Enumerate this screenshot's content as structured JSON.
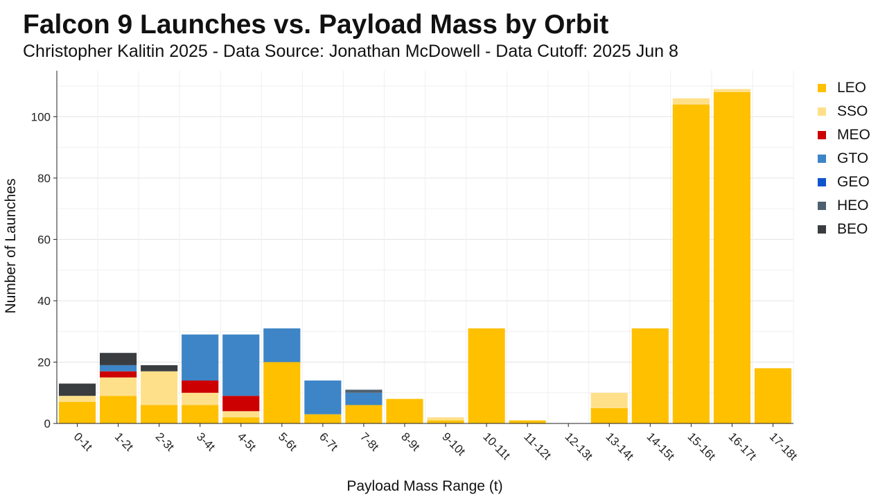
{
  "title": "Falcon 9 Launches vs. Payload Mass by Orbit",
  "subtitle": "Christopher Kalitin 2025 - Data Source: Jonathan McDowell - Data Cutoff: 2025 Jun 8",
  "chart_data": {
    "type": "bar",
    "stacked": true,
    "title": "Falcon 9 Launches vs. Payload Mass by Orbit",
    "subtitle": "Christopher Kalitin 2025 - Data Source: Jonathan McDowell - Data Cutoff: 2025 Jun 8",
    "xlabel": "Payload Mass Range (t)",
    "ylabel": "Number of Launches",
    "ylim": [
      0,
      115
    ],
    "yticks": [
      0,
      20,
      40,
      60,
      80,
      100
    ],
    "grid": true,
    "legend_position": "right",
    "categories": [
      "0-1t",
      "1-2t",
      "2-3t",
      "3-4t",
      "4-5t",
      "5-6t",
      "6-7t",
      "7-8t",
      "8-9t",
      "9-10t",
      "10-11t",
      "11-12t",
      "12-13t",
      "13-14t",
      "14-15t",
      "15-16t",
      "16-17t",
      "17-18t"
    ],
    "series": [
      {
        "name": "LEO",
        "color": "#FFC000",
        "values": [
          7,
          9,
          6,
          6,
          2,
          20,
          3,
          6,
          8,
          1,
          31,
          1,
          0,
          5,
          31,
          104,
          108,
          18
        ]
      },
      {
        "name": "SSO",
        "color": "#FFE08A",
        "values": [
          2,
          6,
          11,
          4,
          2,
          0,
          0,
          0,
          0,
          1,
          0,
          0,
          0,
          5,
          0,
          2,
          1,
          0
        ]
      },
      {
        "name": "MEO",
        "color": "#CC0000",
        "values": [
          0,
          2,
          0,
          4,
          5,
          0,
          0,
          0,
          0,
          0,
          0,
          0,
          0,
          0,
          0,
          0,
          0,
          0
        ]
      },
      {
        "name": "GTO",
        "color": "#3D85C6",
        "values": [
          0,
          2,
          0,
          15,
          20,
          11,
          11,
          4,
          0,
          0,
          0,
          0,
          0,
          0,
          0,
          0,
          0,
          0
        ]
      },
      {
        "name": "GEO",
        "color": "#1155CC",
        "values": [
          0,
          0,
          0,
          0,
          0,
          0,
          0,
          0,
          0,
          0,
          0,
          0,
          0,
          0,
          0,
          0,
          0,
          0
        ]
      },
      {
        "name": "HEO",
        "color": "#4F6070",
        "values": [
          0,
          0,
          0,
          0,
          0,
          0,
          0,
          1,
          0,
          0,
          0,
          0,
          0,
          0,
          0,
          0,
          0,
          0
        ]
      },
      {
        "name": "BEO",
        "color": "#3A3D40",
        "values": [
          4,
          4,
          2,
          0,
          0,
          0,
          0,
          0,
          0,
          0,
          0,
          0,
          0,
          0,
          0,
          0,
          0,
          0
        ]
      }
    ]
  }
}
